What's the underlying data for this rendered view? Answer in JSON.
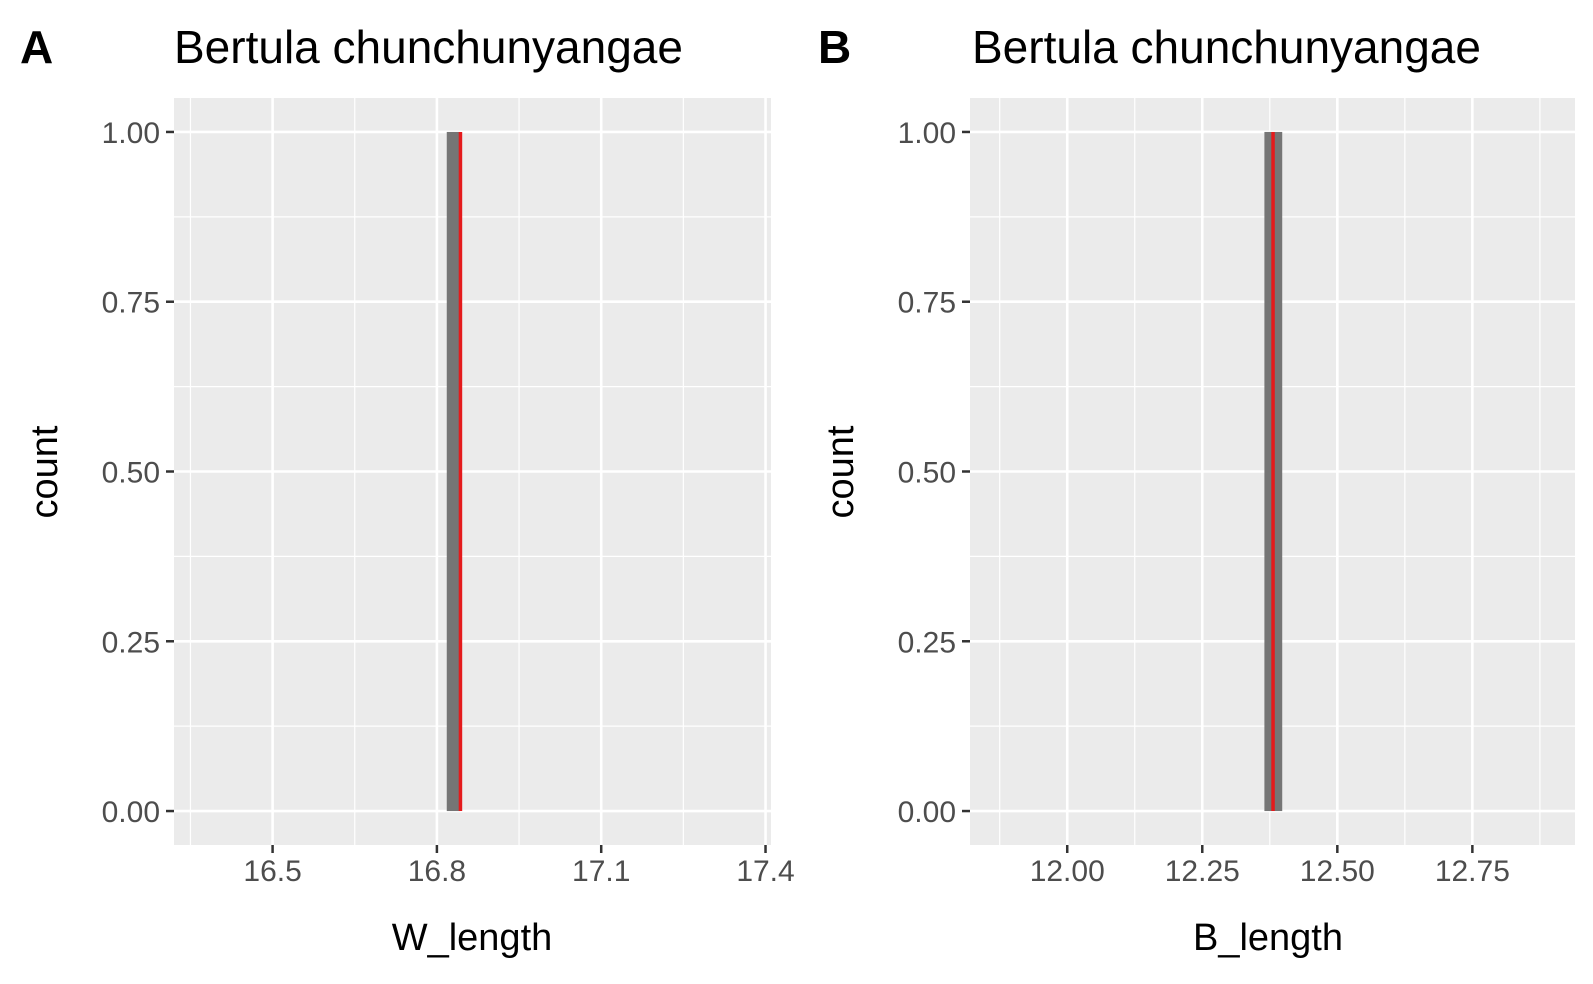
{
  "chart_data": [
    {
      "panel": "A",
      "title": "Bertula chunchunyangae",
      "type": "bar",
      "xlabel": "W_length",
      "ylabel": "count",
      "xlim": [
        16.32,
        17.41
      ],
      "ylim": [
        -0.05,
        1.05
      ],
      "x_ticks": [
        16.5,
        16.8,
        17.1,
        17.4
      ],
      "x_tick_labels": [
        "16.5",
        "16.8",
        "17.1",
        "17.4"
      ],
      "y_ticks": [
        0.0,
        0.25,
        0.5,
        0.75,
        1.0
      ],
      "y_tick_labels": [
        "0.00",
        "0.25",
        "0.50",
        "0.75",
        "1.00"
      ],
      "bars": [
        {
          "xmin": 16.818,
          "xmax": 16.843,
          "count": 1
        }
      ],
      "vline": {
        "x": 16.843,
        "color": "#e41a1c"
      },
      "grid": true
    },
    {
      "panel": "B",
      "title": "Bertula chunchunyangae",
      "type": "bar",
      "xlabel": "B_length",
      "ylabel": "count",
      "xlim": [
        11.82,
        12.94
      ],
      "ylim": [
        -0.05,
        1.05
      ],
      "x_ticks": [
        12.0,
        12.25,
        12.5,
        12.75
      ],
      "x_tick_labels": [
        "12.00",
        "12.25",
        "12.50",
        "12.75"
      ],
      "y_ticks": [
        0.0,
        0.25,
        0.5,
        0.75,
        1.0
      ],
      "y_tick_labels": [
        "0.00",
        "0.25",
        "0.50",
        "0.75",
        "1.00"
      ],
      "bars": [
        {
          "xmin": 12.365,
          "xmax": 12.398,
          "count": 1
        }
      ],
      "vline": {
        "x": 12.381,
        "color": "#e41a1c"
      },
      "grid": true
    }
  ],
  "colors": {
    "panel_background": "#ebebeb",
    "grid": "#ffffff",
    "bar_fill": "#757575",
    "vline": "#e41a1c"
  }
}
